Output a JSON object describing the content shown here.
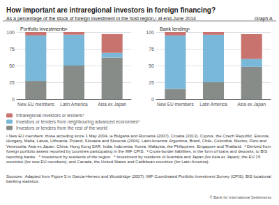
{
  "title": "How important are intraregional investors in foreign financing?",
  "subtitle": "As a percentage of the stock of foreign investment in the host region,¹ at end-June 2014",
  "annotations": [
    "Graph A",
    "¹ New EU members: those acceding since 1 May 2004, ie Bulgaria and Romania (2007), Croatia (2013), Cyprus, the Czech Republic, Estonia, Hungary, Malta, Latvia, Lithuania, Poland, Slovakia and Slovenia (2004). Latin America: Argentina, Brazil, Chile, Colombia, Mexico, Peru and Venezuela. Asia ex Japan: China, Hong Kong SAR, India, Indonesia, Korea, Malaysia, the Philippines, Singapore and Thailand.  ² Derived from foreign portfolio assets reported by countries participating in the IMF CPIS.  ³ Cross-border liabilities, in the form of loans and deposits, to BIS reporting banks.  ⁴ Investment by residents of the region.  ⁵ Investment by residents of Australia and Japan (for Asia ex Japan); the EU 15 countries (for new EU members); and Canada, the United States and Caribbean countries (for Latin America).",
    "Sources:  Adapted from Figure 5 in Garcia-Herrero and Wooldridge (2007); IMF Coordinated Portfolio Investment Survey (CPIS); BIS locational banking statistics.",
    "© Bank for International Settlements"
  ],
  "chart_data": [
    {
      "type": "bar",
      "stacked": true,
      "title": "Portfolio investments²",
      "categories": [
        "New EU members",
        "Latin America",
        "Asia ex Japan"
      ],
      "series": [
        {
          "name": "Investors or lenders from the rest of the world",
          "color": "#888c88",
          "values": [
            27,
            50,
            62
          ]
        },
        {
          "name": "Investors or lenders from neighbouring advanced economies⁵",
          "color": "#7ab8d9",
          "values": [
            68,
            46,
            7
          ]
        },
        {
          "name": "Intraregional investors or lenders⁴",
          "color": "#c9736e",
          "values": [
            5,
            4,
            28
          ]
        }
      ],
      "ylim": [
        0,
        100
      ],
      "yticks": [
        0,
        25,
        50,
        75,
        100
      ],
      "grid": true,
      "legend": "lower left"
    },
    {
      "type": "bar",
      "stacked": true,
      "title": "Bank lending³",
      "categories": [
        "New EU members",
        "Latin America",
        "Asia ex Japan"
      ],
      "series": [
        {
          "name": "Investors or lenders from the rest of the world",
          "color": "#888c88",
          "values": [
            15,
            25,
            48
          ]
        },
        {
          "name": "Investors or lenders from neighbouring advanced economies⁵",
          "color": "#7ab8d9",
          "values": [
            80,
            71,
            12
          ]
        },
        {
          "name": "Intraregional investors or lenders⁴",
          "color": "#c9736e",
          "values": [
            5,
            4,
            37
          ]
        }
      ],
      "ylim": [
        0,
        100
      ],
      "yticks": [
        0,
        25,
        50,
        75,
        100
      ],
      "grid": true,
      "legend": "lower left"
    }
  ]
}
